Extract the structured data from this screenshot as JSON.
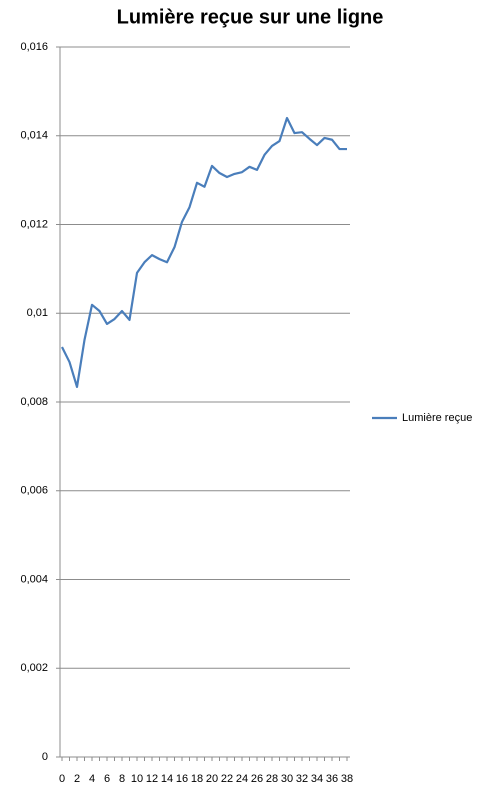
{
  "chart_data": {
    "type": "line",
    "title": "Lumière reçue sur une ligne",
    "categories": [
      "0",
      null,
      "2",
      null,
      "4",
      null,
      "6",
      null,
      "8",
      null,
      "10",
      null,
      "12",
      null,
      "14",
      null,
      "16",
      null,
      "18",
      null,
      "20",
      null,
      "22",
      null,
      "24",
      null,
      "26",
      null,
      "28",
      null,
      "30",
      null,
      "32",
      null,
      "34",
      null,
      "36",
      null,
      "38"
    ],
    "series": [
      {
        "name": "Lumière reçue",
        "color": "#4a7ebb",
        "values": [
          0.00924,
          0.0089,
          0.00834,
          0.0094,
          0.01019,
          0.01005,
          0.00976,
          0.00987,
          0.01005,
          0.00985,
          0.01091,
          0.01115,
          0.01131,
          0.01122,
          0.01115,
          0.01149,
          0.01206,
          0.01239,
          0.01294,
          0.01285,
          0.01332,
          0.01316,
          0.01307,
          0.01314,
          0.01318,
          0.0133,
          0.01323,
          0.01357,
          0.01377,
          0.01388,
          0.0144,
          0.01406,
          0.01408,
          0.01393,
          0.01379,
          0.01395,
          0.01391,
          0.0137,
          0.0137
        ]
      }
    ],
    "ylim": [
      0,
      0.016
    ],
    "yticks": [
      0,
      {
        "value": 0.002,
        "label": "0,002"
      },
      {
        "value": 0.004,
        "label": "0,004"
      },
      {
        "value": 0.006,
        "label": "0,006"
      },
      {
        "value": 0.008,
        "label": "0,008"
      },
      {
        "value": 0.01,
        "label": "0,01"
      },
      {
        "value": 0.012,
        "label": "0,012"
      },
      {
        "value": 0.014,
        "label": "0,014"
      },
      {
        "value": 0.016,
        "label": "0,016"
      }
    ],
    "grid": true,
    "legend": "right"
  }
}
